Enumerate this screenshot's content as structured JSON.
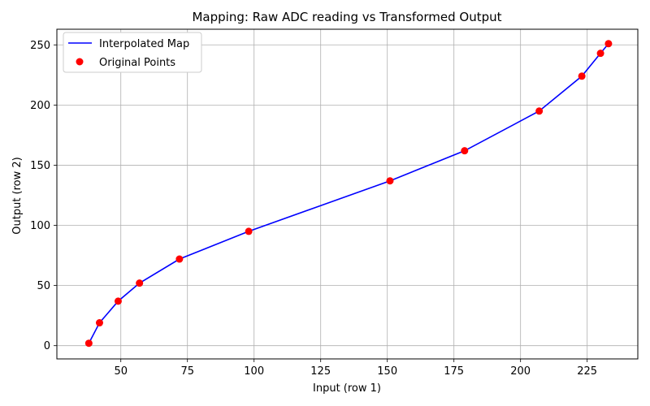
{
  "chart_data": {
    "type": "line",
    "title": "Mapping: Raw ADC reading vs Transformed Output",
    "xlabel": "Input (row 1)",
    "ylabel": "Output (row 2)",
    "xlim": [
      26,
      244
    ],
    "ylim": [
      -11,
      263
    ],
    "xticks": [
      50,
      75,
      100,
      125,
      150,
      175,
      200,
      225
    ],
    "yticks": [
      0,
      50,
      100,
      150,
      200,
      250
    ],
    "grid": true,
    "legend_position": "top-left",
    "series": [
      {
        "name": "Interpolated Map",
        "kind": "line",
        "color": "#0000ff",
        "x": [
          38,
          42,
          49,
          57,
          72,
          98,
          151,
          179,
          207,
          223,
          230,
          233
        ],
        "y": [
          2,
          19,
          37,
          52,
          72,
          95,
          137,
          162,
          195,
          224,
          243,
          251
        ]
      },
      {
        "name": "Original Points",
        "kind": "scatter",
        "color": "#ff0000",
        "x": [
          38,
          42,
          49,
          57,
          72,
          98,
          151,
          179,
          207,
          223,
          230,
          233
        ],
        "y": [
          2,
          19,
          37,
          52,
          72,
          95,
          137,
          162,
          195,
          224,
          243,
          251
        ]
      }
    ]
  }
}
